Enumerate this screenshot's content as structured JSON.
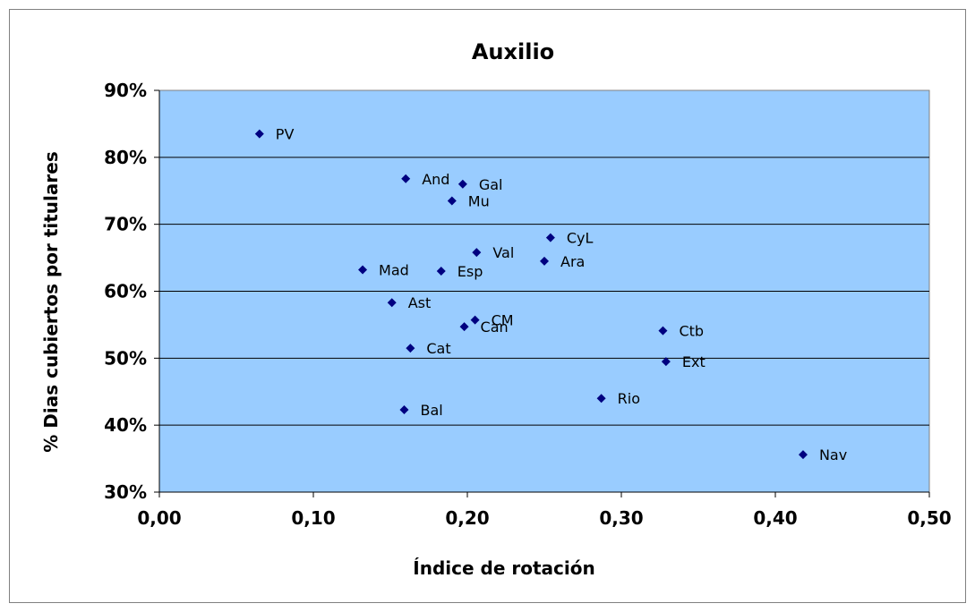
{
  "chart_data": {
    "type": "scatter",
    "title": "Auxilio",
    "xlabel": "Índice de rotación",
    "ylabel": "% Dias cubiertos por titulares",
    "xlim": [
      0,
      0.5
    ],
    "ylim": [
      0.3,
      0.9
    ],
    "x_ticks": [
      "0,00",
      "0,10",
      "0,20",
      "0,30",
      "0,40",
      "0,50"
    ],
    "y_ticks": [
      "30%",
      "40%",
      "50%",
      "60%",
      "70%",
      "80%",
      "90%"
    ],
    "grid": "horizontal",
    "plot_background": "#99CCFF",
    "marker_color": "#000080",
    "points": [
      {
        "label": "PV",
        "x": 0.065,
        "y": 0.835
      },
      {
        "label": "And",
        "x": 0.16,
        "y": 0.768
      },
      {
        "label": "Gal",
        "x": 0.197,
        "y": 0.76
      },
      {
        "label": "Mu",
        "x": 0.19,
        "y": 0.735
      },
      {
        "label": "CyL",
        "x": 0.254,
        "y": 0.68
      },
      {
        "label": "Val",
        "x": 0.206,
        "y": 0.658
      },
      {
        "label": "Ara",
        "x": 0.25,
        "y": 0.645
      },
      {
        "label": "Mad",
        "x": 0.132,
        "y": 0.632
      },
      {
        "label": "Esp",
        "x": 0.183,
        "y": 0.63
      },
      {
        "label": "Ast",
        "x": 0.151,
        "y": 0.583
      },
      {
        "label": "CM",
        "x": 0.205,
        "y": 0.557
      },
      {
        "label": "Can",
        "x": 0.198,
        "y": 0.547
      },
      {
        "label": "Ctb",
        "x": 0.327,
        "y": 0.541
      },
      {
        "label": "Cat",
        "x": 0.163,
        "y": 0.515
      },
      {
        "label": "Ext",
        "x": 0.329,
        "y": 0.495
      },
      {
        "label": "Rio",
        "x": 0.287,
        "y": 0.44
      },
      {
        "label": "Bal",
        "x": 0.159,
        "y": 0.423
      },
      {
        "label": "Nav",
        "x": 0.418,
        "y": 0.356
      }
    ]
  }
}
